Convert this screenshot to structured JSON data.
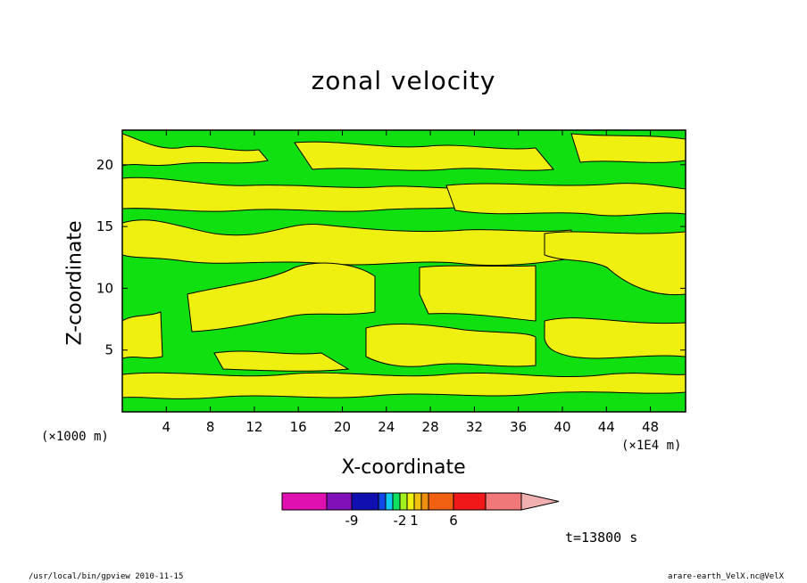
{
  "chart_data": {
    "type": "heatmap",
    "title": "zonal velocity",
    "xlabel": "X-coordinate",
    "ylabel": "Z-coordinate",
    "x_unit_label": "(×1E4 m)",
    "y_unit_label": "(×1000 m)",
    "x_ticks": [
      4,
      8,
      12,
      16,
      20,
      24,
      28,
      32,
      36,
      40,
      44,
      48
    ],
    "y_ticks": [
      5,
      10,
      15,
      20
    ],
    "xlim": [
      0,
      51.2
    ],
    "ylim": [
      0,
      22.8
    ],
    "colorbar": {
      "colors": [
        "#e010b0",
        "#8010b8",
        "#1010b0",
        "#1048e8",
        "#10c8f0",
        "#10e060",
        "#a0f020",
        "#f0f010",
        "#f0c010",
        "#f09010",
        "#f06010",
        "#f01818",
        "#f07878",
        "#f0b0b0"
      ],
      "labels": [
        "-9",
        "-2",
        "1",
        "6"
      ]
    },
    "dominant_levels": [
      "green",
      "yellow"
    ],
    "annotation": "t=13800 s"
  },
  "footer": {
    "left": "/usr/local/bin/gpview  2010-11-15",
    "right": "arare-earth_VelX.nc@VelX"
  }
}
